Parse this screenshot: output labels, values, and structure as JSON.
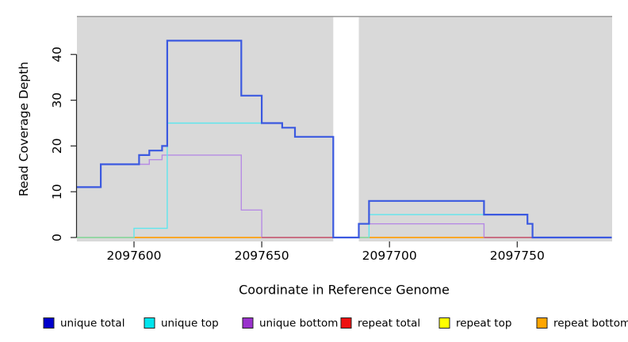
{
  "chart_data": {
    "type": "line",
    "subtype": "step-coverage-plot",
    "title": "",
    "xlabel": "Coordinate in Reference Genome",
    "ylabel": "Read Coverage Depth",
    "xlim": [
      2097577.5,
      2097787
    ],
    "ylim": [
      0,
      48
    ],
    "x_ticks": [
      "2097600",
      "2097650",
      "2097700",
      "2097750"
    ],
    "x_tick_values": [
      2097600,
      2097650,
      2097700,
      2097750
    ],
    "y_ticks": [
      "0",
      "10",
      "20",
      "30",
      "40"
    ],
    "y_tick_values": [
      0,
      10,
      20,
      30,
      40
    ],
    "grid": false,
    "plot_background": "#D9D9D9",
    "gap_region": {
      "from": 2097678,
      "to": 2097688,
      "fill": "#FFFFFF"
    },
    "series": [
      {
        "name": "unique total",
        "line_color": "#3B59E0",
        "points": [
          [
            2097577.5,
            11
          ],
          [
            2097587,
            16
          ],
          [
            2097602,
            18
          ],
          [
            2097606,
            19
          ],
          [
            2097611,
            20
          ],
          [
            2097613,
            43
          ],
          [
            2097642,
            31
          ],
          [
            2097650,
            25
          ],
          [
            2097658,
            24
          ],
          [
            2097663,
            22
          ],
          [
            2097678,
            0
          ],
          [
            2097688,
            3
          ],
          [
            2097692,
            8
          ],
          [
            2097737,
            5
          ],
          [
            2097754,
            3
          ],
          [
            2097756,
            0
          ]
        ]
      },
      {
        "name": "unique top",
        "line_color": "#5FE6ED",
        "points": [
          [
            2097577.5,
            0
          ],
          [
            2097600,
            2
          ],
          [
            2097613,
            25
          ],
          [
            2097658,
            24
          ],
          [
            2097663,
            22
          ],
          [
            2097678,
            0
          ],
          [
            2097692,
            5
          ],
          [
            2097754,
            3
          ],
          [
            2097756,
            0
          ]
        ]
      },
      {
        "name": "unique bottom",
        "line_color": "#B68BE4",
        "points": [
          [
            2097577.5,
            11
          ],
          [
            2097587,
            16
          ],
          [
            2097606,
            17
          ],
          [
            2097611,
            18
          ],
          [
            2097642,
            6
          ],
          [
            2097650,
            0
          ],
          [
            2097688,
            3
          ],
          [
            2097737,
            0
          ]
        ]
      },
      {
        "name": "repeat total",
        "line_color": "#D5506E",
        "points": [
          [
            2097577.5,
            0
          ]
        ]
      },
      {
        "name": "repeat top",
        "line_color": "#F0E442",
        "points": [
          [
            2097577.5,
            0
          ]
        ]
      },
      {
        "name": "repeat bottom",
        "line_color": "#FFA010",
        "points": [
          [
            2097577.5,
            0
          ]
        ]
      }
    ],
    "zero_line_blends": [
      {
        "color": "#8FD9A8",
        "from": 2097577.5,
        "to": 2097600
      },
      {
        "color": "#C4607E",
        "from": 2097650,
        "to": 2097678
      },
      {
        "color": "#8FD9A8",
        "from": 2097688,
        "to": 2097692
      },
      {
        "color": "#C4607E",
        "from": 2097737,
        "to": 2097756
      }
    ],
    "legend_position": "bottom"
  },
  "legend": {
    "items": [
      {
        "label": "unique total",
        "color": "#0000CC"
      },
      {
        "label": "unique top",
        "color": "#00E5EE"
      },
      {
        "label": "unique bottom",
        "color": "#9932CC"
      },
      {
        "label": "repeat total",
        "color": "#EE1111"
      },
      {
        "label": "repeat top",
        "color": "#FFFF00"
      },
      {
        "label": "repeat bottom",
        "color": "#FFA500"
      }
    ]
  }
}
